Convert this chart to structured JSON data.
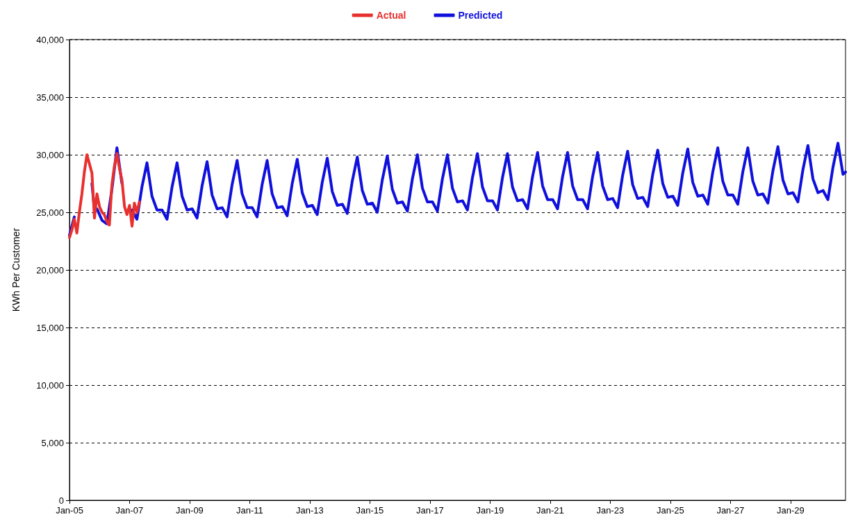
{
  "chart_data": {
    "type": "line",
    "ylabel": "KWh Per Customer",
    "legend": "top",
    "grid": "y",
    "marker": "none",
    "line_style": "solid",
    "xlim": [
      "2005-01",
      "2030-11"
    ],
    "xticks": [
      {
        "value": "2005-01",
        "label": "Jan-05"
      },
      {
        "value": "2007-01",
        "label": "Jan-07"
      },
      {
        "value": "2009-01",
        "label": "Jan-09"
      },
      {
        "value": "2011-01",
        "label": "Jan-11"
      },
      {
        "value": "2013-01",
        "label": "Jan-13"
      },
      {
        "value": "2015-01",
        "label": "Jan-15"
      },
      {
        "value": "2017-01",
        "label": "Jan-17"
      },
      {
        "value": "2019-01",
        "label": "Jan-19"
      },
      {
        "value": "2021-01",
        "label": "Jan-21"
      },
      {
        "value": "2023-01",
        "label": "Jan-23"
      },
      {
        "value": "2025-01",
        "label": "Jan-25"
      },
      {
        "value": "2027-01",
        "label": "Jan-27"
      },
      {
        "value": "2029-01",
        "label": "Jan-29"
      }
    ],
    "ylim": [
      0,
      40000
    ],
    "yticks": [
      0,
      {
        "value": 5000,
        "label": "5,000"
      },
      {
        "value": 10000,
        "label": "10,000"
      },
      {
        "value": 15000,
        "label": "15,000"
      },
      {
        "value": 20000,
        "label": "20,000"
      },
      {
        "value": 25000,
        "label": "25,000"
      },
      {
        "value": 30000,
        "label": "30,000"
      },
      {
        "value": 35000,
        "label": "35,000"
      },
      {
        "value": 40000,
        "label": "40,000"
      }
    ],
    "series": [
      {
        "name": "Actual",
        "color": "#e8302e",
        "x": [
          "2005-01",
          "2005-02",
          "2005-03",
          "2005-04",
          "2005-05",
          "2005-06",
          "2005-07",
          "2005-08",
          "2005-09",
          "2005-10",
          "2005-11",
          "2005-12",
          "2006-01",
          "2006-02",
          "2006-03",
          "2006-04",
          "2006-05",
          "2006-06",
          "2006-07",
          "2006-08",
          "2006-09",
          "2006-10",
          "2006-11",
          "2006-12",
          "2007-01",
          "2007-02",
          "2007-03",
          "2007-04",
          "2007-05"
        ],
        "values": [
          22800,
          23500,
          24400,
          23200,
          25000,
          26600,
          28500,
          30000,
          29200,
          28400,
          24500,
          26600,
          25500,
          25000,
          24800,
          24200,
          23900,
          27400,
          29000,
          30100,
          28800,
          27800,
          25500,
          24800,
          25600,
          23800,
          25800,
          25000,
          25900
        ]
      },
      {
        "name": "Predicted",
        "color": "#1010dd",
        "x": [
          "2005-01",
          "2005-03",
          "2005-04",
          "2005-06",
          "2005-08",
          "2005-10",
          "2005-11",
          "2005-12",
          "2006-02",
          "2006-04",
          "2006-06",
          "2006-08",
          "2006-10",
          "2006-12",
          "2007-02",
          "2007-04",
          "2007-06",
          "2007-08",
          "2007-10",
          "2007-12",
          "2008-02",
          "2008-04",
          "2008-06",
          "2008-08",
          "2008-10",
          "2008-12",
          "2009-02",
          "2009-04",
          "2009-06",
          "2009-08",
          "2009-10",
          "2009-12",
          "2010-02",
          "2010-04",
          "2010-06",
          "2010-08",
          "2010-10",
          "2010-12",
          "2011-02",
          "2011-04",
          "2011-06",
          "2011-08",
          "2011-10",
          "2011-12",
          "2012-02",
          "2012-04",
          "2012-06",
          "2012-08",
          "2012-10",
          "2012-12",
          "2013-02",
          "2013-04",
          "2013-06",
          "2013-08",
          "2013-10",
          "2013-12",
          "2014-02",
          "2014-04",
          "2014-06",
          "2014-08",
          "2014-10",
          "2014-12",
          "2015-02",
          "2015-04",
          "2015-06",
          "2015-08",
          "2015-10",
          "2015-12",
          "2016-02",
          "2016-04",
          "2016-06",
          "2016-08",
          "2016-10",
          "2016-12",
          "2017-02",
          "2017-04",
          "2017-06",
          "2017-08",
          "2017-10",
          "2017-12",
          "2018-02",
          "2018-04",
          "2018-06",
          "2018-08",
          "2018-10",
          "2018-12",
          "2019-02",
          "2019-04",
          "2019-06",
          "2019-08",
          "2019-10",
          "2019-12",
          "2020-02",
          "2020-04",
          "2020-06",
          "2020-08",
          "2020-10",
          "2020-12",
          "2021-02",
          "2021-04",
          "2021-06",
          "2021-08",
          "2021-10",
          "2021-12",
          "2022-02",
          "2022-04",
          "2022-06",
          "2022-08",
          "2022-10",
          "2022-12",
          "2023-02",
          "2023-04",
          "2023-06",
          "2023-08",
          "2023-10",
          "2023-12",
          "2024-02",
          "2024-04",
          "2024-06",
          "2024-08",
          "2024-10",
          "2024-12",
          "2025-02",
          "2025-04",
          "2025-06",
          "2025-08",
          "2025-10",
          "2025-12",
          "2026-02",
          "2026-04",
          "2026-06",
          "2026-08",
          "2026-10",
          "2026-12",
          "2027-02",
          "2027-04",
          "2027-06",
          "2027-08",
          "2027-10",
          "2027-12",
          "2028-02",
          "2028-04",
          "2028-06",
          "2028-08",
          "2028-10",
          "2028-12",
          "2029-02",
          "2029-04",
          "2029-06",
          "2029-08",
          "2029-10",
          "2029-12",
          "2030-02",
          "2030-04",
          "2030-06",
          "2030-08",
          "2030-10",
          "2030-11"
        ],
        "values": [
          23000,
          24600,
          null,
          null,
          null,
          27500,
          25200,
          25300,
          24300,
          24000,
          27000,
          30600,
          27500,
          null,
          25200,
          24400,
          27200,
          29300,
          26400,
          25200,
          25200,
          24400,
          27200,
          29300,
          26400,
          25200,
          25300,
          24500,
          27300,
          29400,
          26500,
          25300,
          25400,
          24600,
          27400,
          29500,
          26600,
          25400,
          25400,
          24600,
          27400,
          29500,
          26600,
          25400,
          25500,
          24700,
          27500,
          29600,
          26700,
          25500,
          25600,
          24800,
          27600,
          29700,
          26800,
          25600,
          25700,
          24900,
          27700,
          29800,
          26900,
          25700,
          25800,
          25000,
          27800,
          29900,
          27000,
          25800,
          25900,
          25100,
          27900,
          30000,
          27100,
          25900,
          25900,
          25100,
          27900,
          30000,
          27100,
          25900,
          26000,
          25200,
          28000,
          30100,
          27200,
          26000,
          26000,
          25200,
          28000,
          30100,
          27200,
          26000,
          26100,
          25300,
          28100,
          30200,
          27300,
          26100,
          26100,
          25300,
          28100,
          30200,
          27300,
          26100,
          26100,
          25300,
          28100,
          30200,
          27300,
          26100,
          26200,
          25400,
          28200,
          30300,
          27400,
          26200,
          26300,
          25500,
          28300,
          30400,
          27500,
          26300,
          26400,
          25600,
          28400,
          30500,
          27600,
          26400,
          26500,
          25700,
          28500,
          30600,
          27700,
          26500,
          26500,
          25700,
          28500,
          30600,
          27700,
          26500,
          26600,
          25800,
          28600,
          30700,
          27800,
          26600,
          26700,
          25900,
          28700,
          30800,
          27900,
          26700,
          26900,
          26100,
          28900,
          31000,
          28300,
          28500
        ]
      }
    ]
  }
}
